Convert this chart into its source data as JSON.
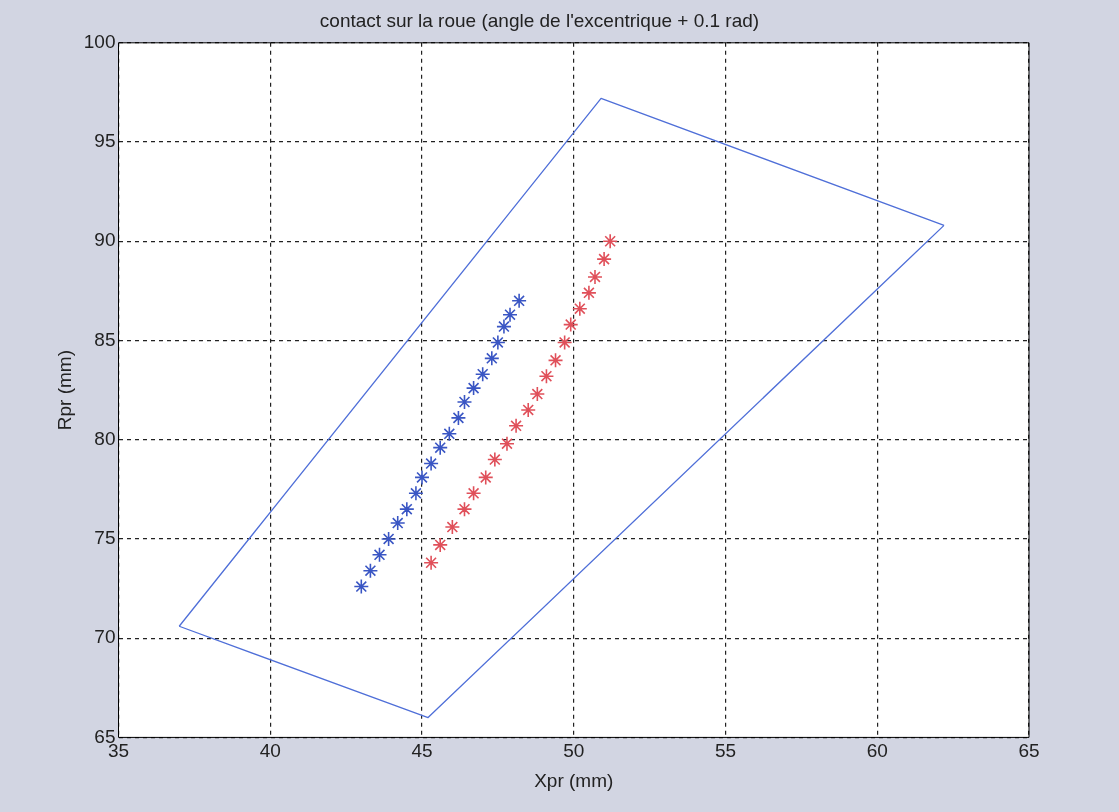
{
  "chart_data": {
    "type": "line",
    "title": "contact sur la roue (angle de l'excentrique + 0.1 rad)",
    "xlabel": "Xpr (mm)",
    "ylabel": "Rpr (mm)",
    "xlim": [
      35,
      65
    ],
    "xticks": [
      35,
      40,
      45,
      50,
      55,
      60,
      65
    ],
    "ylim": [
      65,
      100
    ],
    "yticks": [
      65,
      70,
      75,
      80,
      85,
      90,
      95,
      100
    ],
    "grid": true,
    "legend": false,
    "series": [
      {
        "marker": "none",
        "color": "#4f6fd8",
        "x": [
          37.0,
          45.2,
          62.2
        ],
        "values": [
          70.6,
          66.0,
          90.8
        ]
      },
      {
        "marker": "none",
        "color": "#4f6fd8",
        "x": [
          37.0,
          50.9,
          62.2
        ],
        "values": [
          70.6,
          97.2,
          90.8
        ]
      },
      {
        "type": "scatter",
        "marker": "cross",
        "color": "#3a56c4",
        "x": [
          43.0,
          43.3,
          43.6,
          43.9,
          44.2,
          44.5,
          44.8,
          45.0,
          45.3,
          45.6,
          45.9,
          46.2,
          46.4,
          46.7,
          47.0,
          47.3,
          47.5,
          47.7,
          47.9,
          48.2
        ],
        "values": [
          72.6,
          73.4,
          74.2,
          75.0,
          75.8,
          76.5,
          77.3,
          78.1,
          78.8,
          79.6,
          80.3,
          81.1,
          81.9,
          82.6,
          83.3,
          84.1,
          84.9,
          85.7,
          86.3,
          87.0
        ]
      },
      {
        "type": "scatter",
        "marker": "cross",
        "color": "#e0505a",
        "x": [
          45.3,
          45.6,
          46.0,
          46.4,
          46.7,
          47.1,
          47.4,
          47.8,
          48.1,
          48.5,
          48.8,
          49.1,
          49.4,
          49.7,
          49.9,
          50.2,
          50.5,
          50.7,
          51.0,
          51.2
        ],
        "values": [
          73.8,
          74.7,
          75.6,
          76.5,
          77.3,
          78.1,
          79.0,
          79.8,
          80.7,
          81.5,
          82.3,
          83.2,
          84.0,
          84.9,
          85.8,
          86.6,
          87.4,
          88.2,
          89.1,
          90.0
        ]
      }
    ]
  }
}
